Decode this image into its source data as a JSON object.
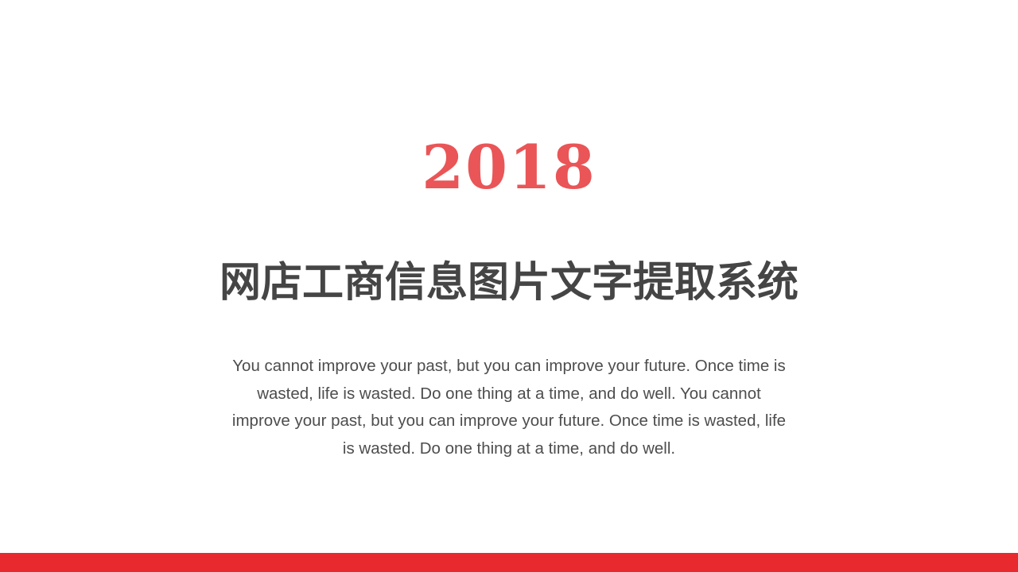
{
  "slide": {
    "year": "2018",
    "title": "网店工商信息图片文字提取系统",
    "body": "You cannot improve your past, but you can improve your future. Once time is wasted, life is wasted. Do one thing at a time, and do well. You cannot improve your past, but you can improve your future. Once time is wasted, life is wasted. Do one thing at a time, and do well."
  },
  "colors": {
    "accent": "#ea5557",
    "title": "#454545",
    "body": "#4d4d4d",
    "bottom_bar": "#e8292e",
    "background": "#ffffff"
  }
}
